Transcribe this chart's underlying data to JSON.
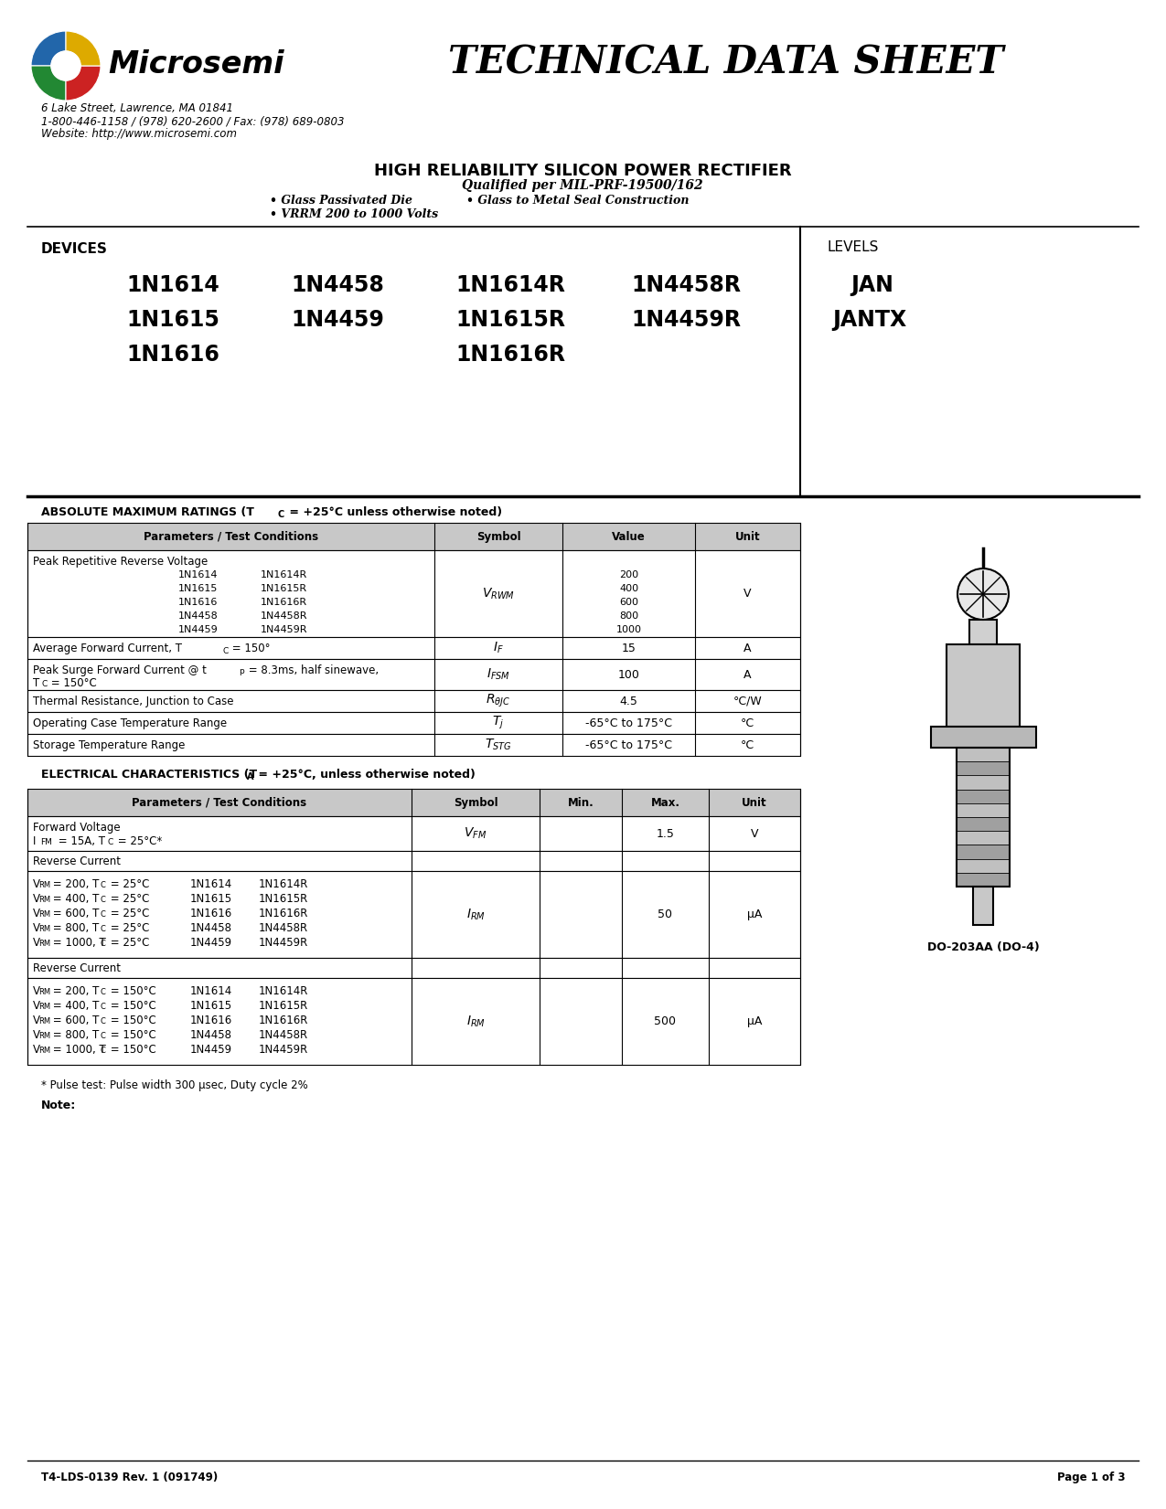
{
  "company": "Microsemi",
  "address_line1": "6 Lake Street, Lawrence, MA 01841",
  "address_line2": "1-800-446-1158 / (978) 620-2600 / Fax: (978) 689-0803",
  "address_line3": "Website: http://www.microsemi.com",
  "doc_title": "TECHNICAL DATA SHEET",
  "product_title": "HIGH RELIABILITY SILICON POWER RECTIFIER",
  "product_subtitle": "Qualified per MIL-PRF-19500/162",
  "bullet1": "• Glass Passivated Die",
  "bullet2": "• Glass to Metal Seal Construction",
  "bullet3": "• VRRM 200 to 1000 Volts",
  "devices_label": "DEVICES",
  "levels_label": "LEVELS",
  "device_col1": [
    "1N1614",
    "1N1615",
    "1N1616"
  ],
  "device_col2": [
    "1N4458",
    "1N4459",
    ""
  ],
  "device_col3": [
    "1N1614R",
    "1N1615R",
    "1N1616R"
  ],
  "device_col4": [
    "1N4458R",
    "1N4459R",
    ""
  ],
  "levels_col": [
    "JAN",
    "JANTX"
  ],
  "package_label": "DO-203AA (DO-4)",
  "abs_max_title": "ABSOLUTE MAXIMUM RATINGS (T",
  "abs_max_title2": " = +25°C unless otherwise noted)",
  "abs_max_subscript": "C",
  "abs_table_headers": [
    "Parameters / Test Conditions",
    "Symbol",
    "Value",
    "Unit"
  ],
  "elec_title": "ELECTRICAL CHARACTERISTICS (T",
  "elec_title2": " = +25°C, unless otherwise noted)",
  "elec_table_headers": [
    "Parameters / Test Conditions",
    "Symbol",
    "Min.",
    "Max.",
    "Unit"
  ],
  "footer_note": "* Pulse test: Pulse width 300 μsec, Duty cycle 2%",
  "note_label": "Note:",
  "footer_left": "T4-LDS-0139 Rev. 1 (091749)",
  "footer_right": "Page 1 of 3",
  "bg_color": "#ffffff"
}
